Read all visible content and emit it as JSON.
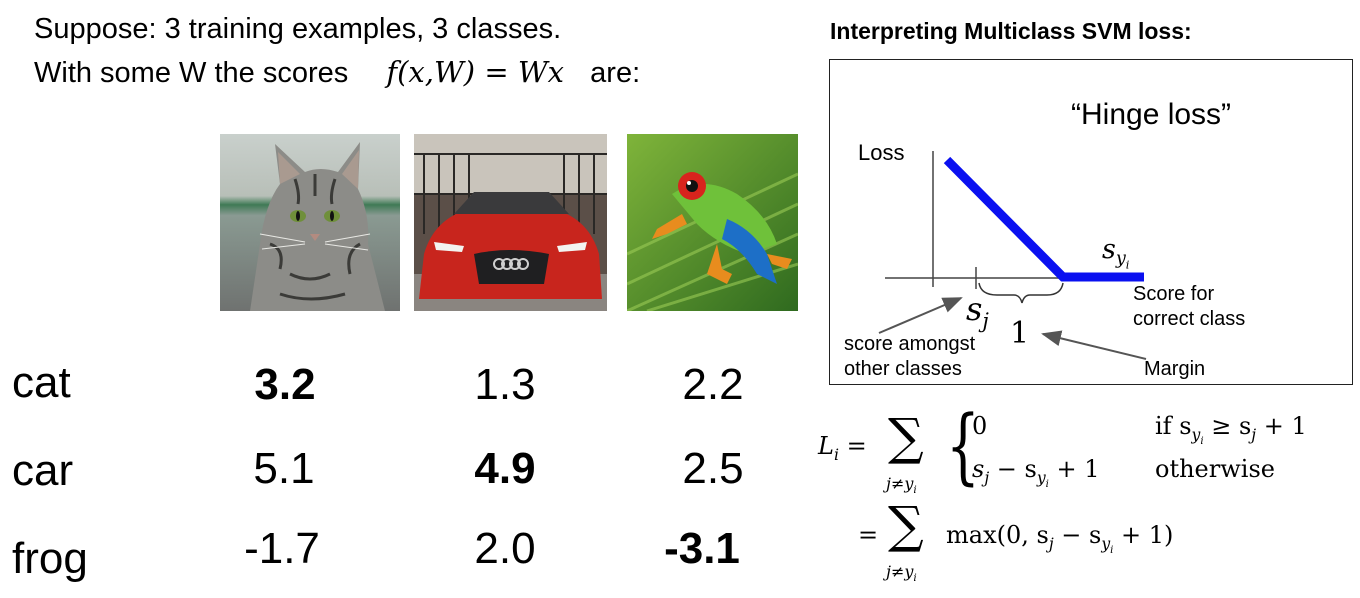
{
  "intro": {
    "line1": "Suppose: 3 training examples, 3 classes.",
    "line2_text": "With some W the scores",
    "formula_lhs": "f(x,W)",
    "formula_eq": " = ",
    "formula_rhs": "Wx",
    "line2_tail": "are:"
  },
  "images": [
    {
      "subject": "cat",
      "icon": "cat-photo"
    },
    {
      "subject": "car",
      "icon": "car-photo"
    },
    {
      "subject": "frog",
      "icon": "frog-photo"
    }
  ],
  "classes": [
    "cat",
    "car",
    "frog"
  ],
  "scores": [
    [
      "3.2",
      "1.3",
      "2.2"
    ],
    [
      "5.1",
      "4.9",
      "2.5"
    ],
    [
      "-1.7",
      "2.0",
      "-3.1"
    ]
  ],
  "right": {
    "title": "Interpreting Multiclass SVM loss:",
    "plot": {
      "heading": "“Hinge loss”",
      "y_label": "Loss",
      "s_yi_label": "s",
      "s_yi_sub": "y",
      "s_yi_subsub": "i",
      "x_label_1": "Score for",
      "x_label_2": "correct class",
      "sj_label": "s",
      "sj_sub": "j",
      "margin_value": "1",
      "margin_label": "Margin",
      "sj_desc_1": "score amongst",
      "sj_desc_2": "other classes",
      "line_color": "#0a10f0"
    },
    "loss_formula": {
      "lhs": "L",
      "lhs_sub": "i",
      "sum_symbol": "∑",
      "sum_index": "j≠y",
      "sum_index_sub": "i",
      "case1_value": "0",
      "case1_cond": "if s",
      "case1_cond_tail": " ≥ s",
      "case1_cond_end": " + 1",
      "case2_value_a": "s",
      "case2_value_b": " − s",
      "case2_value_c": " + 1",
      "case2_cond": "otherwise",
      "line2_eq": "=",
      "line2_body": "max(0, s",
      "line2_mid": " − s",
      "line2_end": " + 1)"
    }
  }
}
